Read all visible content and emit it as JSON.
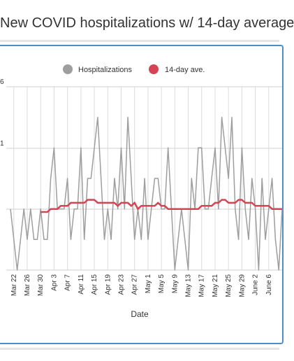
{
  "page": {
    "title": "New COVID hospitalizations w/ 14-day average"
  },
  "chart_data": {
    "type": "line",
    "xlabel": "Date",
    "ylabel": "",
    "y_ticks": [
      "6",
      "1"
    ],
    "ylim": [
      0,
      6
    ],
    "x_tick_labels": [
      "Mar 22",
      "Mar 26",
      "Mar 30",
      "Apr 3",
      "Apr 7",
      "Apr 11",
      "Apr 15",
      "Apr 19",
      "Apr 23",
      "Apr 27",
      "May 1",
      "May 5",
      "May 9",
      "May 13",
      "May 17",
      "May 21",
      "May 25",
      "May 29",
      "June 2",
      "June 6"
    ],
    "x_tick_index": [
      1,
      5,
      9,
      13,
      17,
      21,
      25,
      29,
      33,
      37,
      41,
      45,
      49,
      53,
      57,
      61,
      65,
      69,
      73,
      77
    ],
    "legend": {
      "position": "top",
      "entries": [
        "Hospitalizations",
        "14-day ave."
      ]
    },
    "grid": true,
    "series": [
      {
        "name": "Hospitalizations",
        "color": "#9e9e9e",
        "values": [
          2,
          1,
          0,
          1,
          2,
          1,
          2,
          1,
          1,
          2,
          1,
          1,
          3,
          4,
          2,
          2,
          2,
          3,
          1,
          2,
          2,
          4,
          1,
          3,
          3,
          4,
          5,
          3,
          1,
          2,
          1,
          3,
          2,
          4,
          2,
          5,
          3,
          1,
          2,
          1,
          3,
          1,
          2,
          3,
          3,
          2,
          2,
          4,
          2,
          0,
          1,
          2,
          1,
          0,
          3,
          2,
          4,
          4,
          2,
          2,
          3,
          4,
          2,
          5,
          4,
          3,
          5,
          2,
          1,
          4,
          2,
          1,
          3,
          2,
          0,
          3,
          1,
          2,
          3,
          1,
          0,
          2
        ]
      },
      {
        "name": "14-day ave.",
        "color": "#d44455",
        "values": [
          null,
          null,
          null,
          null,
          null,
          null,
          null,
          null,
          null,
          1.9,
          1.9,
          1.9,
          2.0,
          2.0,
          2.0,
          2.1,
          2.1,
          2.1,
          2.2,
          2.2,
          2.2,
          2.2,
          2.2,
          2.3,
          2.3,
          2.3,
          2.2,
          2.2,
          2.2,
          2.2,
          2.2,
          2.2,
          2.1,
          2.2,
          2.2,
          2.2,
          2.1,
          2.2,
          2.0,
          2.1,
          2.1,
          2.1,
          2.1,
          2.1,
          2.2,
          2.1,
          2.1,
          2.0,
          2.0,
          2.0,
          2.0,
          2.0,
          2.0,
          2.0,
          2.0,
          2.0,
          2.0,
          2.1,
          2.1,
          2.1,
          2.1,
          2.2,
          2.2,
          2.3,
          2.3,
          2.2,
          2.2,
          2.2,
          2.3,
          2.3,
          2.2,
          2.2,
          2.2,
          2.1,
          2.1,
          2.1,
          2.1,
          2.1,
          2.0,
          2.0,
          2.0,
          2.0
        ]
      }
    ]
  }
}
